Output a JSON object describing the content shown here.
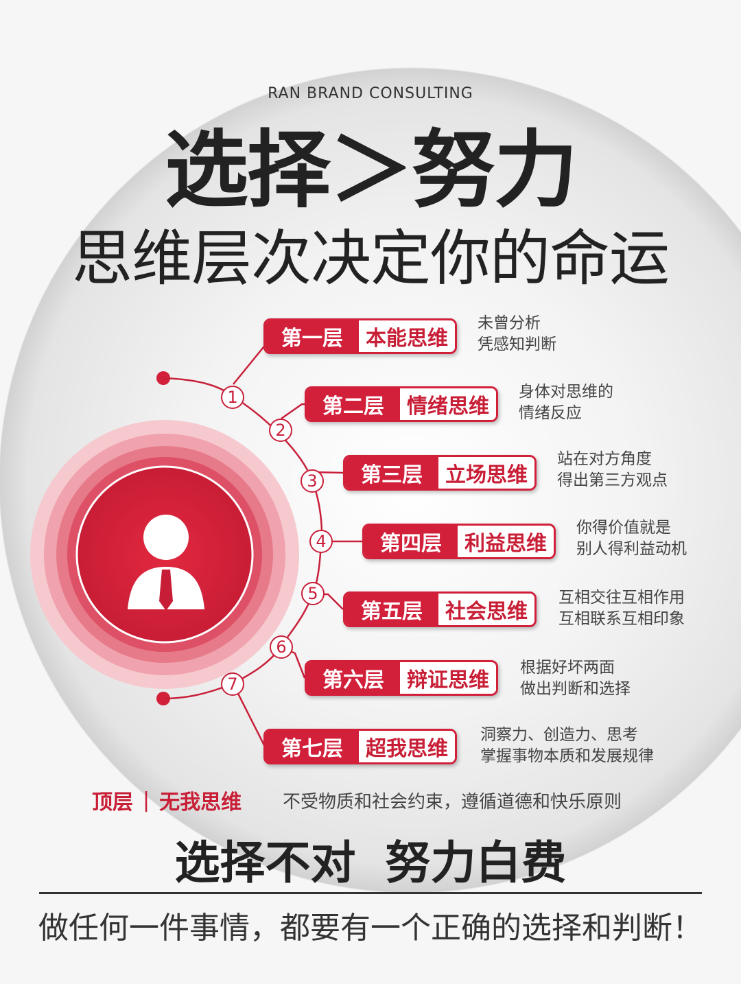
{
  "brand": "RAN BRAND CONSULTING",
  "title_main": "选择＞努力",
  "title_sub": "思维层次决定你的命运",
  "levels": [
    {
      "num": "1",
      "level": "第一层",
      "name": "本能思维",
      "desc": [
        "未曾分析",
        "凭感知判断"
      ]
    },
    {
      "num": "2",
      "level": "第二层",
      "name": "情绪思维",
      "desc": [
        "身体对思维的",
        "情绪反应"
      ]
    },
    {
      "num": "3",
      "level": "第三层",
      "name": "立场思维",
      "desc": [
        "站在对方角度",
        "得出第三方观点"
      ]
    },
    {
      "num": "4",
      "level": "第四层",
      "name": "利益思维",
      "desc": [
        "你得价值就是",
        "别人得利益动机"
      ]
    },
    {
      "num": "5",
      "level": "第五层",
      "name": "社会思维",
      "desc": [
        "互相交往互相作用",
        "互相联系互相印象"
      ]
    },
    {
      "num": "6",
      "level": "第六层",
      "name": "辩证思维",
      "desc": [
        "根据好坏两面",
        "做出判断和选择"
      ]
    },
    {
      "num": "7",
      "level": "第七层",
      "name": "超我思维",
      "desc": [
        "洞察力、创造力、思考",
        "掌握事物本质和发展规律"
      ]
    }
  ],
  "top_level": {
    "label": "顶层",
    "separator": "|",
    "name": "无我思维",
    "desc": "不受物质和社会约束，遵循道德和快乐原则"
  },
  "slogan": "选择不对  努力白费",
  "bottom_text": "做任何一件事情，都要有一个正确的选择和判断！",
  "colors": {
    "accent": "#d21f3a",
    "text": "#222222"
  },
  "icons": {
    "person": "person-tie-icon"
  }
}
